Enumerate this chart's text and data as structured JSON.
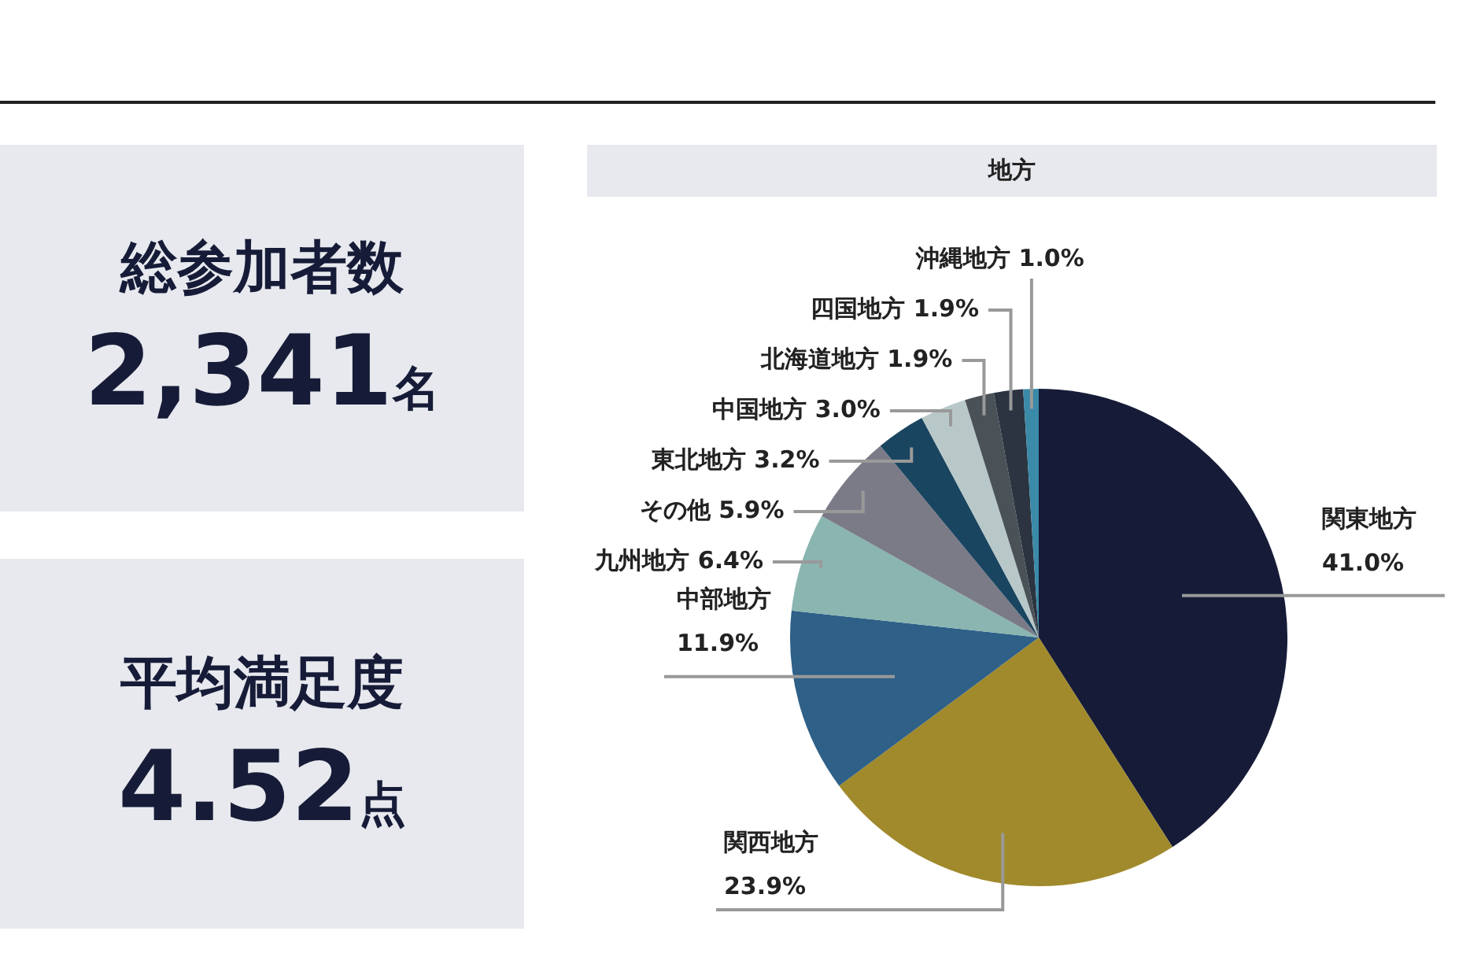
{
  "chart_data": [
    {
      "type": "other",
      "title": "総参加者数",
      "annotations": [
        "2,341",
        "名"
      ]
    },
    {
      "type": "other",
      "title": "平均満足度",
      "annotations": [
        "4.52",
        "点"
      ]
    },
    {
      "type": "pie",
      "title": "地方",
      "categories": [
        "関東地方",
        "関西地方",
        "中部地方",
        "九州地方",
        "その他",
        "東北地方",
        "中国地方",
        "北海道地方",
        "四国地方",
        "沖縄地方"
      ],
      "values": [
        41.0,
        23.9,
        11.9,
        6.4,
        5.9,
        3.2,
        3.0,
        1.9,
        1.9,
        1.0
      ],
      "colors": [
        "#161c38",
        "#a08a2c",
        "#2e6088",
        "#8ab5b0",
        "#7b7b88",
        "#1a4560",
        "#b8c8c8",
        "#4a5258",
        "#2b3440",
        "#3a8aa8"
      ],
      "value_labels": [
        "41.0%",
        "23.9%",
        "11.9%",
        "6.4%",
        "5.9%",
        "3.2%",
        "3.0%",
        "1.9%",
        "1.9%",
        "1.0%"
      ],
      "legend": false
    }
  ]
}
